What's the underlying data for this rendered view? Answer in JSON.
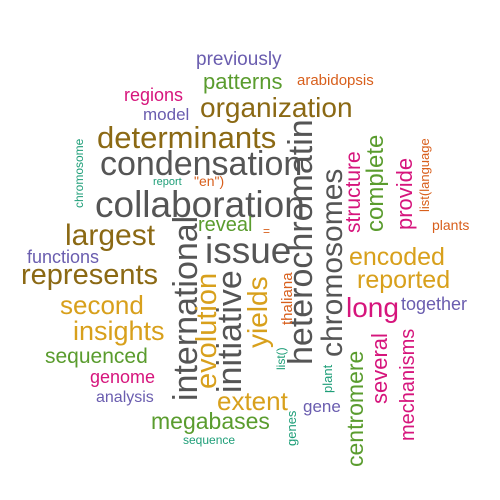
{
  "colors": {
    "dark_gray": "#555555",
    "olive_brown": "#8B6914",
    "gold": "#D8A01C",
    "green": "#5A9C2E",
    "magenta": "#D6157C",
    "purple": "#6A5DAF",
    "orange": "#D85F1C",
    "teal": "#1E9E78"
  },
  "words": [
    {
      "text": "previously",
      "color": "purple"
    },
    {
      "text": "patterns",
      "color": "green"
    },
    {
      "text": "arabidopsis",
      "color": "orange"
    },
    {
      "text": "regions",
      "color": "magenta"
    },
    {
      "text": "organization",
      "color": "olive_brown"
    },
    {
      "text": "model",
      "color": "purple"
    },
    {
      "text": "determinants",
      "color": "olive_brown"
    },
    {
      "text": "chromosome",
      "color": "teal"
    },
    {
      "text": "condensation",
      "color": "dark_gray"
    },
    {
      "text": "report",
      "color": "teal"
    },
    {
      "text": "\"en\")",
      "color": "orange"
    },
    {
      "text": "collaboration",
      "color": "dark_gray"
    },
    {
      "text": "heterochromatin",
      "color": "dark_gray"
    },
    {
      "text": "chromosomes",
      "color": "dark_gray"
    },
    {
      "text": "structure",
      "color": "magenta"
    },
    {
      "text": "complete",
      "color": "green"
    },
    {
      "text": "provide",
      "color": "magenta"
    },
    {
      "text": "list(language",
      "color": "orange"
    },
    {
      "text": "plants",
      "color": "orange"
    },
    {
      "text": "largest",
      "color": "olive_brown"
    },
    {
      "text": "international",
      "color": "dark_gray"
    },
    {
      "text": "reveal",
      "color": "green"
    },
    {
      "text": "=",
      "color": "orange"
    },
    {
      "text": "issue",
      "color": "dark_gray"
    },
    {
      "text": "encoded",
      "color": "gold"
    },
    {
      "text": "functions",
      "color": "purple"
    },
    {
      "text": "represents",
      "color": "olive_brown"
    },
    {
      "text": "reported",
      "color": "gold"
    },
    {
      "text": "initiative",
      "color": "dark_gray"
    },
    {
      "text": "evolution",
      "color": "gold"
    },
    {
      "text": "yields",
      "color": "gold"
    },
    {
      "text": "thaliana",
      "color": "orange"
    },
    {
      "text": "second",
      "color": "gold"
    },
    {
      "text": "long",
      "color": "magenta"
    },
    {
      "text": "together",
      "color": "purple"
    },
    {
      "text": "insights",
      "color": "gold"
    },
    {
      "text": "list()",
      "color": "teal"
    },
    {
      "text": "sequenced",
      "color": "green"
    },
    {
      "text": "plant",
      "color": "teal"
    },
    {
      "text": "centromere",
      "color": "green"
    },
    {
      "text": "several",
      "color": "magenta"
    },
    {
      "text": "mechanisms",
      "color": "magenta"
    },
    {
      "text": "genome",
      "color": "magenta"
    },
    {
      "text": "analysis",
      "color": "purple"
    },
    {
      "text": "extent",
      "color": "gold"
    },
    {
      "text": "gene",
      "color": "purple"
    },
    {
      "text": "megabases",
      "color": "green"
    },
    {
      "text": "genes",
      "color": "teal"
    },
    {
      "text": "sequence",
      "color": "teal"
    }
  ]
}
